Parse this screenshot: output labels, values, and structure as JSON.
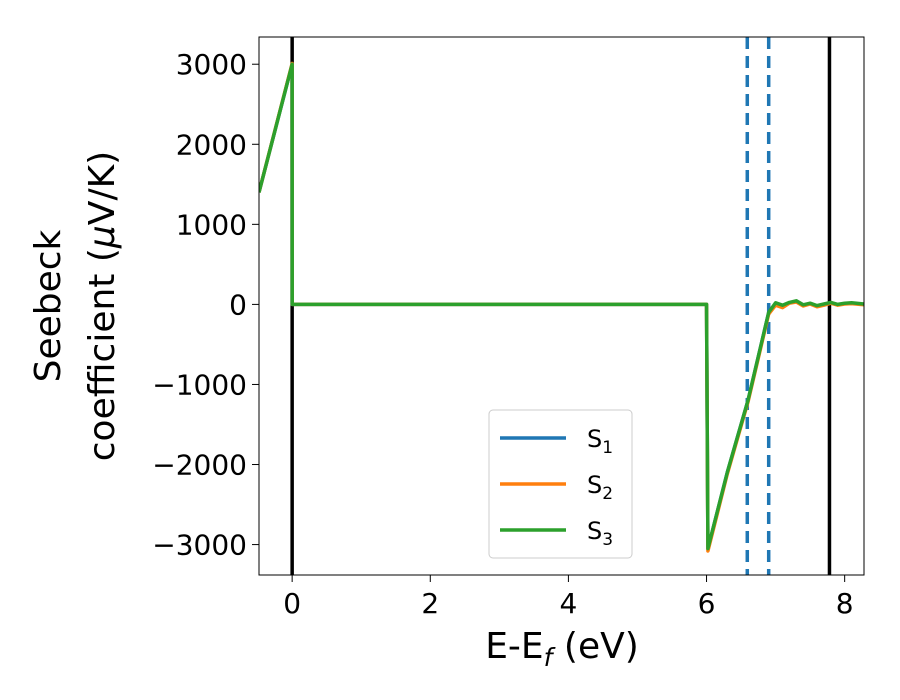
{
  "chart_data": {
    "type": "line",
    "xlabel": "E-E",
    "xlabel_sub": "f",
    "xlabel_unit": " (eV)",
    "ylabel_line1": "Seebeck",
    "ylabel_line2": "coefficient  (",
    "ylabel_mu": "μ",
    "ylabel_unit": "V/K)",
    "xlim": [
      -0.48,
      8.28
    ],
    "ylim": [
      -3380,
      3340
    ],
    "xticks": [
      0,
      2,
      4,
      6,
      8
    ],
    "xtick_labels": [
      "0",
      "2",
      "4",
      "6",
      "8"
    ],
    "yticks": [
      3000,
      2000,
      1000,
      0,
      -1000,
      -2000,
      -3000
    ],
    "ytick_labels": [
      "3000",
      "2000",
      "1000",
      "0",
      "−1000",
      "−2000",
      "−3000"
    ],
    "legend_position": "lower center",
    "vertical_lines": [
      {
        "x": 0.0,
        "style": "solid",
        "color": "#000000"
      },
      {
        "x": 7.78,
        "style": "solid",
        "color": "#000000"
      },
      {
        "x": 6.59,
        "style": "dashed",
        "color": "#1f77b4"
      },
      {
        "x": 6.9,
        "style": "dashed",
        "color": "#1f77b4"
      }
    ],
    "series": [
      {
        "name": "S",
        "sub": "1",
        "color": "#1f77b4",
        "x": [
          -0.48,
          0.0,
          0.001,
          6.0,
          6.02,
          6.3,
          6.6,
          6.9,
          7.0,
          7.1,
          7.2,
          7.3,
          7.4,
          7.5,
          7.6,
          7.7,
          7.8,
          7.9,
          8.0,
          8.1,
          8.28
        ],
        "y": [
          1400,
          3000,
          0,
          0,
          -3050,
          -2100,
          -1200,
          -100,
          10,
          -20,
          20,
          40,
          -10,
          10,
          -20,
          0,
          20,
          -5,
          10,
          15,
          0
        ]
      },
      {
        "name": "S",
        "sub": "2",
        "color": "#ff7f0e",
        "x": [
          -0.48,
          0.0,
          0.001,
          6.0,
          6.02,
          6.3,
          6.6,
          6.9,
          7.0,
          7.1,
          7.2,
          7.3,
          7.4,
          7.5,
          7.6,
          7.7,
          7.8,
          7.9,
          8.0,
          8.1,
          8.28
        ],
        "y": [
          1400,
          3010,
          0,
          0,
          -3080,
          -2120,
          -1220,
          -120,
          -10,
          -40,
          15,
          30,
          -20,
          5,
          -30,
          -10,
          15,
          -10,
          5,
          10,
          -5
        ]
      },
      {
        "name": "S",
        "sub": "3",
        "color": "#2ca02c",
        "x": [
          -0.48,
          0.0,
          0.001,
          6.0,
          6.02,
          6.3,
          6.6,
          6.9,
          7.0,
          7.1,
          7.2,
          7.3,
          7.4,
          7.5,
          7.6,
          7.7,
          7.8,
          7.9,
          8.0,
          8.1,
          8.28
        ],
        "y": [
          1400,
          3000,
          0,
          0,
          -3050,
          -2100,
          -1200,
          -100,
          20,
          -10,
          25,
          45,
          -5,
          15,
          -15,
          5,
          25,
          0,
          15,
          20,
          5
        ]
      }
    ]
  }
}
